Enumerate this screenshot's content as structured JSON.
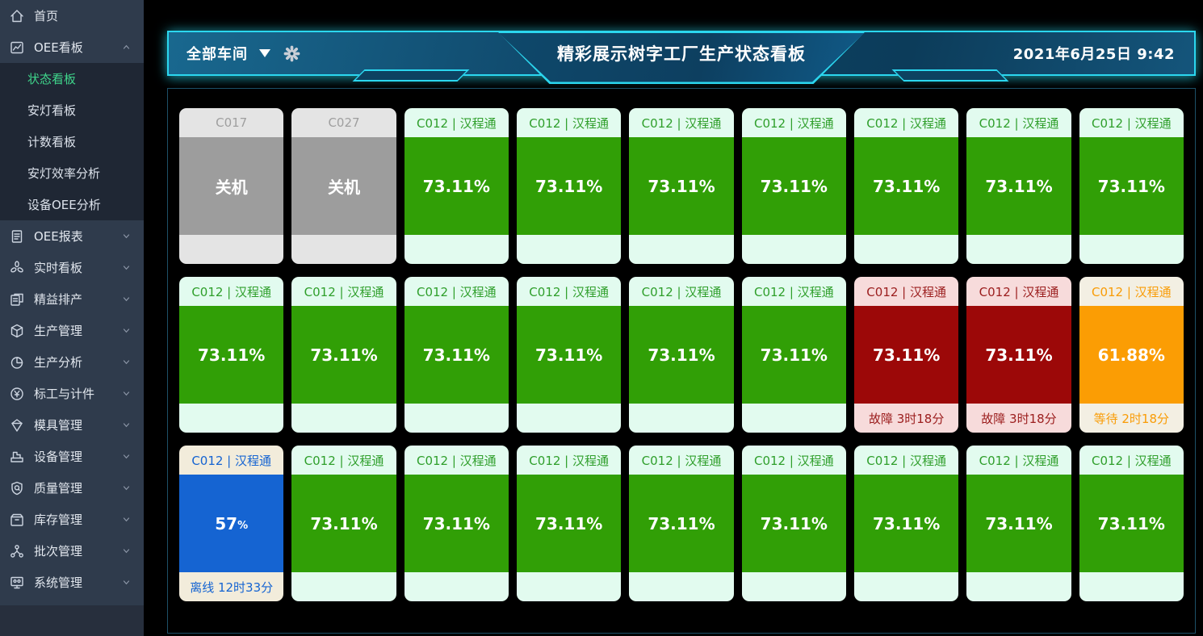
{
  "header": {
    "workshop_selector": {
      "label": "全部车间"
    },
    "title": "精彩展示树字工厂生产状态看板",
    "datetime": "2021年6月25日 9:42"
  },
  "sidebar": {
    "items": [
      {
        "key": "home",
        "label": "首页",
        "icon": "home-icon",
        "chevron": "none"
      },
      {
        "key": "oee-kanban",
        "label": "OEE看板",
        "icon": "oee-board-icon",
        "chevron": "up",
        "children": [
          {
            "key": "status-board",
            "label": "状态看板",
            "active": true
          },
          {
            "key": "andon-board",
            "label": "安灯看板",
            "active": false
          },
          {
            "key": "count-board",
            "label": "计数看板",
            "active": false
          },
          {
            "key": "andon-efficiency",
            "label": "安灯效率分析",
            "active": false
          },
          {
            "key": "device-oee",
            "label": "设备OEE分析",
            "active": false
          }
        ]
      },
      {
        "key": "oee-report",
        "label": "OEE报表",
        "icon": "report-icon",
        "chevron": "down"
      },
      {
        "key": "realtime-board",
        "label": "实时看板",
        "icon": "fan-icon",
        "chevron": "down"
      },
      {
        "key": "lean-scheduling",
        "label": "精益排产",
        "icon": "schedule-icon",
        "chevron": "down"
      },
      {
        "key": "production-mgmt",
        "label": "生产管理",
        "icon": "production-icon",
        "chevron": "down"
      },
      {
        "key": "production-analysis",
        "label": "生产分析",
        "icon": "pie-chart-icon",
        "chevron": "down"
      },
      {
        "key": "piecework",
        "label": "标工与计件",
        "icon": "yen-coin-icon",
        "chevron": "down"
      },
      {
        "key": "mold-mgmt",
        "label": "模具管理",
        "icon": "mold-icon",
        "chevron": "down"
      },
      {
        "key": "equipment-mgmt",
        "label": "设备管理",
        "icon": "machine-icon",
        "chevron": "down"
      },
      {
        "key": "quality-mgmt",
        "label": "质量管理",
        "icon": "quality-shield-icon",
        "chevron": "down"
      },
      {
        "key": "inventory-mgmt",
        "label": "库存管理",
        "icon": "inventory-box-icon",
        "chevron": "down"
      },
      {
        "key": "batch-mgmt",
        "label": "批次管理",
        "icon": "batch-nodes-icon",
        "chevron": "down"
      },
      {
        "key": "system-mgmt",
        "label": "系统管理",
        "icon": "system-monitor-icon",
        "chevron": "down"
      }
    ]
  },
  "status_styles": {
    "off": {
      "head_bg": "#e4e4e4",
      "head_fg": "#9f9f9f",
      "body_bg": "#9d9d9d",
      "body_fg": "#ffffff",
      "foot_bg": "#e4e4e4",
      "foot_fg": "#9f9f9f"
    },
    "running": {
      "head_bg": "#e2fbef",
      "head_fg": "#2f9f2b",
      "body_bg": "#319f06",
      "body_fg": "#ffffff",
      "foot_bg": "#e2fbef",
      "foot_fg": "#2f9f2b"
    },
    "fault": {
      "head_bg": "#f7dbdb",
      "head_fg": "#9b1d1d",
      "body_bg": "#9c0808",
      "body_fg": "#ffffff",
      "foot_bg": "#f7dbdb",
      "foot_fg": "#9b1d1d"
    },
    "waiting": {
      "head_bg": "#f3efe3",
      "head_fg": "#f99c06",
      "body_bg": "#fb9d04",
      "body_fg": "#ffffff",
      "foot_bg": "#f3efe3",
      "foot_fg": "#f99c06"
    },
    "offline": {
      "head_bg": "#f2ecdb",
      "head_fg": "#1564d2",
      "body_bg": "#1564d2",
      "body_fg": "#ffffff",
      "foot_bg": "#f2ecdb",
      "foot_fg": "#1564d2"
    }
  },
  "cards": [
    {
      "title": "C017",
      "status": "off",
      "value": "关机",
      "suffix": "",
      "footer": ""
    },
    {
      "title": "C027",
      "status": "off",
      "value": "关机",
      "suffix": "",
      "footer": ""
    },
    {
      "title": "C012 | 汉程通",
      "status": "running",
      "value": "73.11%",
      "suffix": "",
      "footer": ""
    },
    {
      "title": "C012 | 汉程通",
      "status": "running",
      "value": "73.11%",
      "suffix": "",
      "footer": ""
    },
    {
      "title": "C012 | 汉程通",
      "status": "running",
      "value": "73.11%",
      "suffix": "",
      "footer": ""
    },
    {
      "title": "C012 | 汉程通",
      "status": "running",
      "value": "73.11%",
      "suffix": "",
      "footer": ""
    },
    {
      "title": "C012 | 汉程通",
      "status": "running",
      "value": "73.11%",
      "suffix": "",
      "footer": ""
    },
    {
      "title": "C012 | 汉程通",
      "status": "running",
      "value": "73.11%",
      "suffix": "",
      "footer": ""
    },
    {
      "title": "C012 | 汉程通",
      "status": "running",
      "value": "73.11%",
      "suffix": "",
      "footer": ""
    },
    {
      "title": "C012 | 汉程通",
      "status": "running",
      "value": "73.11%",
      "suffix": "",
      "footer": ""
    },
    {
      "title": "C012 | 汉程通",
      "status": "running",
      "value": "73.11%",
      "suffix": "",
      "footer": ""
    },
    {
      "title": "C012 | 汉程通",
      "status": "running",
      "value": "73.11%",
      "suffix": "",
      "footer": ""
    },
    {
      "title": "C012 | 汉程通",
      "status": "running",
      "value": "73.11%",
      "suffix": "",
      "footer": ""
    },
    {
      "title": "C012 | 汉程通",
      "status": "running",
      "value": "73.11%",
      "suffix": "",
      "footer": ""
    },
    {
      "title": "C012 | 汉程通",
      "status": "running",
      "value": "73.11%",
      "suffix": "",
      "footer": ""
    },
    {
      "title": "C012 | 汉程通",
      "status": "fault",
      "value": "73.11%",
      "suffix": "",
      "footer": "故障 3时18分"
    },
    {
      "title": "C012 | 汉程通",
      "status": "fault",
      "value": "73.11%",
      "suffix": "",
      "footer": "故障 3时18分"
    },
    {
      "title": "C012 | 汉程通",
      "status": "waiting",
      "value": "61.88%",
      "suffix": "",
      "footer": "等待 2时18分"
    },
    {
      "title": "C012 | 汉程通",
      "status": "offline",
      "value": "57",
      "suffix": "%",
      "footer": "离线 12时33分"
    },
    {
      "title": "C012 | 汉程通",
      "status": "running",
      "value": "73.11%",
      "suffix": "",
      "footer": ""
    },
    {
      "title": "C012 | 汉程通",
      "status": "running",
      "value": "73.11%",
      "suffix": "",
      "footer": ""
    },
    {
      "title": "C012 | 汉程通",
      "status": "running",
      "value": "73.11%",
      "suffix": "",
      "footer": ""
    },
    {
      "title": "C012 | 汉程通",
      "status": "running",
      "value": "73.11%",
      "suffix": "",
      "footer": ""
    },
    {
      "title": "C012 | 汉程通",
      "status": "running",
      "value": "73.11%",
      "suffix": "",
      "footer": ""
    },
    {
      "title": "C012 | 汉程通",
      "status": "running",
      "value": "73.11%",
      "suffix": "",
      "footer": ""
    },
    {
      "title": "C012 | 汉程通",
      "status": "running",
      "value": "73.11%",
      "suffix": "",
      "footer": ""
    },
    {
      "title": "C012 | 汉程通",
      "status": "running",
      "value": "73.11%",
      "suffix": "",
      "footer": ""
    }
  ]
}
